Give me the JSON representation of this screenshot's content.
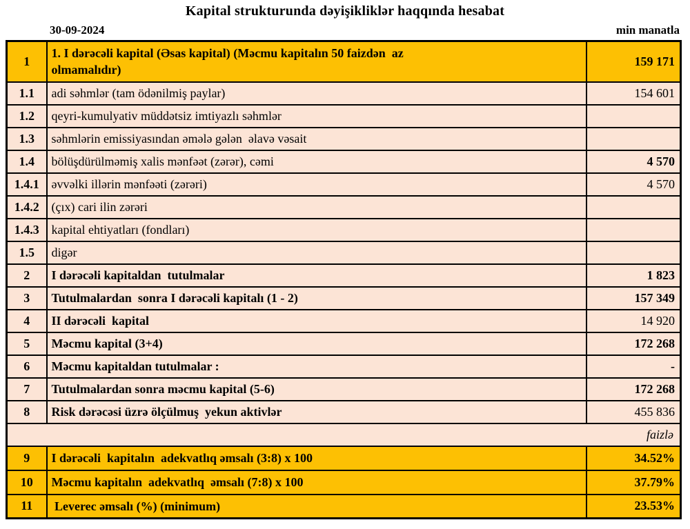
{
  "colors": {
    "gold": "#FDC003",
    "peach": "#FCE4D6",
    "border": "#000000"
  },
  "header": {
    "title": "Kapital strukturunda dəyişikliklər haqqında hesabat",
    "date": "30-09-2024",
    "unit": "min manatla"
  },
  "table": {
    "rows": [
      {
        "num": "1",
        "label": "1. I dərəcəli kapital (Əsas kapital) (Məcmu kapitalın 50 faizdən  az \nolmamalıdır)",
        "value": "159 171",
        "fill": "gold",
        "label_bold": true,
        "value_bold": true,
        "tall": true
      },
      {
        "num": "1.1",
        "label": "adi səhmlər (tam ödənilmiş paylar)",
        "value": "154 601",
        "fill": "peach",
        "label_bold": false,
        "value_bold": false
      },
      {
        "num": "1.2",
        "label": "qeyri-kumulyativ müddətsiz imtiyazlı səhmlər",
        "value": "",
        "fill": "peach",
        "label_bold": false,
        "value_bold": false
      },
      {
        "num": "1.3",
        "label": "səhmlərin emissiyasından əmələ gələn  əlavə vəsait",
        "value": "",
        "fill": "peach",
        "label_bold": false,
        "value_bold": false
      },
      {
        "num": "1.4",
        "label": "bölüşdürülməmiş xalis mənfəət (zərər), cəmi",
        "value": "4 570",
        "fill": "peach",
        "label_bold": false,
        "value_bold": true
      },
      {
        "num": "1.4.1",
        "label": "əvvəlki illərin mənfəəti (zərəri)",
        "value": "4 570",
        "fill": "peach",
        "label_bold": false,
        "value_bold": false
      },
      {
        "num": "1.4.2",
        "label": "(çıx) cari ilin zərəri",
        "value": "",
        "fill": "peach",
        "label_bold": false,
        "value_bold": false
      },
      {
        "num": "1.4.3",
        "label": "kapital ehtiyatları (fondları)",
        "value": "",
        "fill": "peach",
        "label_bold": false,
        "value_bold": false
      },
      {
        "num": "1.5",
        "label": "digər",
        "value": "",
        "fill": "peach",
        "label_bold": false,
        "value_bold": false
      },
      {
        "num": "2",
        "label": "I dərəcəli kapitaldan  tutulmalar",
        "value": "1 823",
        "fill": "peach",
        "label_bold": true,
        "value_bold": true
      },
      {
        "num": "3",
        "label": "Tutulmalardan  sonra I dərəcəli kapitalı (1 - 2)",
        "value": "157 349",
        "fill": "peach",
        "label_bold": true,
        "value_bold": true
      },
      {
        "num": "4",
        "label": "II dərəcəli  kapital",
        "value": "14 920",
        "fill": "peach",
        "label_bold": true,
        "value_bold": false
      },
      {
        "num": "5",
        "label": "Məcmu kapital (3+4)",
        "value": "172 268",
        "fill": "peach",
        "label_bold": true,
        "value_bold": true
      },
      {
        "num": "6",
        "label": "Məcmu kapitaldan tutulmalar :",
        "value": "-",
        "fill": "peach",
        "label_bold": true,
        "value_bold": true
      },
      {
        "num": "7",
        "label": "Tutulmalardan sonra məcmu kapital (5-6)",
        "value": "172 268",
        "fill": "peach",
        "label_bold": true,
        "value_bold": true
      },
      {
        "num": "8",
        "label": "Risk dərəcəsi üzrə ölçülmuş  yekun aktivlər",
        "value": "455 836",
        "fill": "peach",
        "label_bold": true,
        "value_bold": false
      },
      {
        "type": "note",
        "label": "faizlə"
      },
      {
        "num": "9",
        "label": "I dərəcəli  kapitalın  adekvatlıq əmsalı (3:8) x 100",
        "value": "34.52%",
        "fill": "gold",
        "label_bold": true,
        "value_bold": true,
        "pct": true
      },
      {
        "num": "10",
        "label": "Məcmu kapitalın  adekvatlıq  əmsalı (7:8) x 100",
        "value": "37.79%",
        "fill": "gold",
        "label_bold": true,
        "value_bold": true,
        "pct": true
      },
      {
        "num": "11",
        "label": " Leverec əmsalı (%) (minimum)",
        "value": "23.53%",
        "fill": "gold",
        "label_bold": true,
        "value_bold": true,
        "pct": true
      }
    ]
  }
}
